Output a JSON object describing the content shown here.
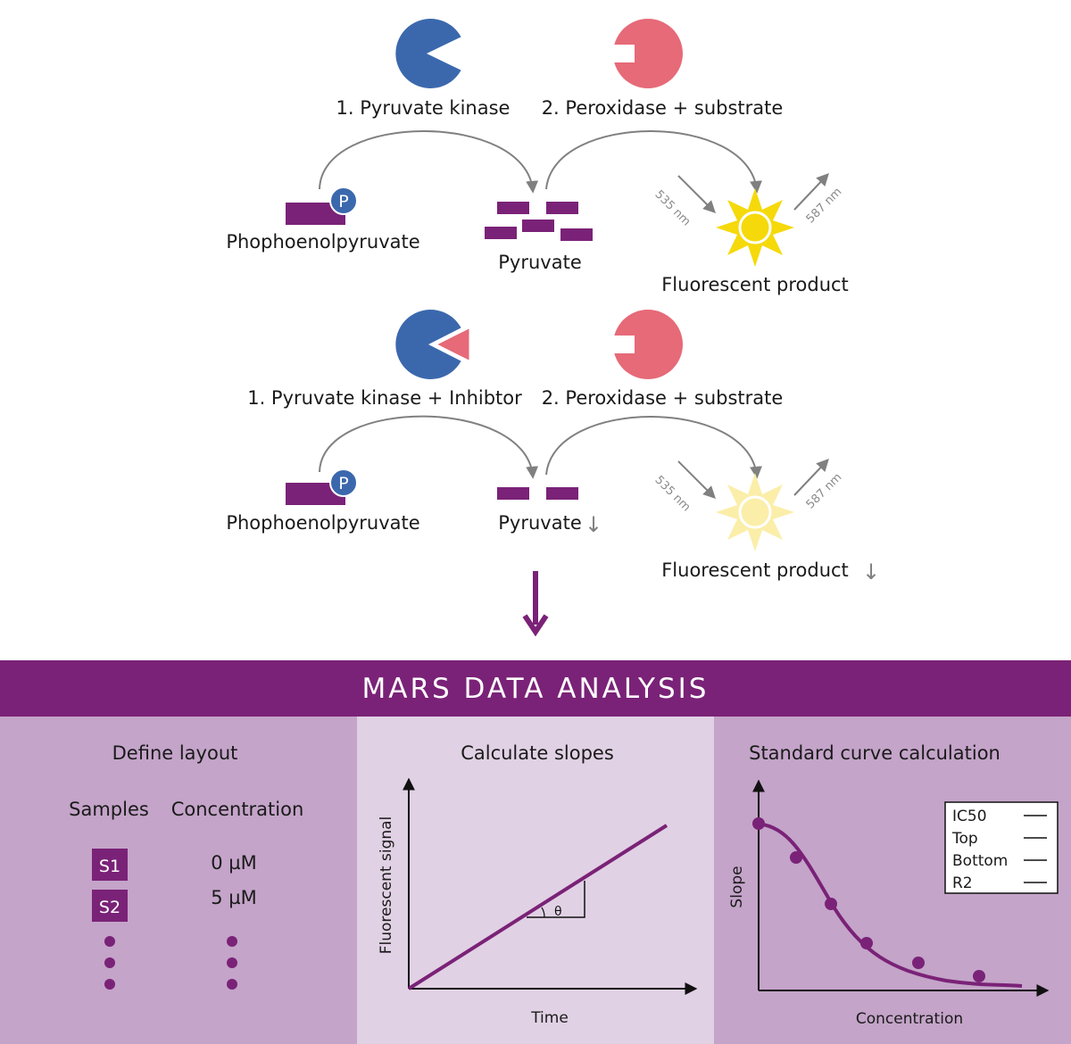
{
  "reaction_normal": {
    "enzyme1_label": "1. Pyruvate kinase",
    "enzyme2_label": "2. Peroxidase + substrate",
    "substrate_label": "Phophoenolpyruvate",
    "phosphate_label": "P",
    "intermediate_label": "Pyruvate",
    "product_label": "Fluorescent product",
    "excitation_label": "535 nm",
    "emission_label": "587 nm"
  },
  "reaction_inhibited": {
    "enzyme1_label": "1. Pyruvate kinase + Inhibtor",
    "enzyme2_label": "2. Peroxidase + substrate",
    "substrate_label": "Phophoenolpyruvate",
    "phosphate_label": "P",
    "intermediate_label": "Pyruvate",
    "intermediate_decrease_arrow": "↓",
    "product_label": "Fluorescent product",
    "product_decrease_arrow": "↓",
    "excitation_label": "535 nm",
    "emission_label": "587 nm"
  },
  "banner": {
    "title": "MARS DATA ANALYSIS"
  },
  "define_layout": {
    "title": "Define layout",
    "col_samples": "Samples",
    "col_concentration": "Concentration",
    "rows": [
      {
        "sample": "S1",
        "concentration": "0 µM"
      },
      {
        "sample": "S2",
        "concentration": "5 µM"
      }
    ]
  },
  "calculate_slopes": {
    "title": "Calculate slopes",
    "xlabel": "Time",
    "ylabel": "Fluorescent signal",
    "angle_label": "θ"
  },
  "standard_curve": {
    "title": "Standard curve calculation",
    "xlabel": "Concentration",
    "ylabel": "Slope",
    "legend_items": [
      "IC50",
      "Top",
      "Bottom",
      "R2"
    ]
  },
  "colors": {
    "enzyme1": "#3b68ad",
    "enzyme2": "#e66a78",
    "molecule": "#7a2277",
    "product_bright": "#f5d90a",
    "product_dim": "#fbeea9",
    "arrow_gray": "#808080",
    "banner": "#7a2277"
  }
}
